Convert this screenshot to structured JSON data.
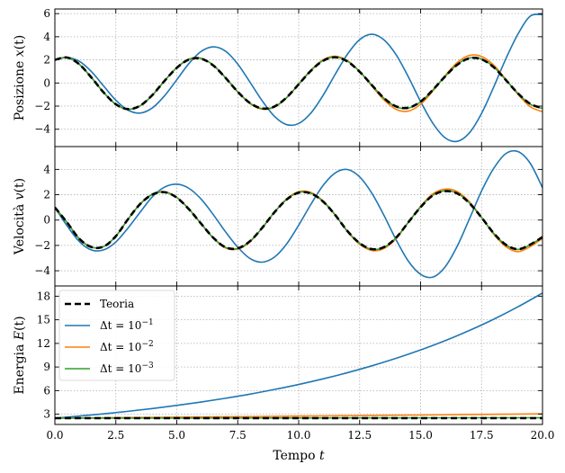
{
  "chart_data": [
    {
      "type": "line",
      "ylabel_prefix": "Posizione ",
      "ylabel_var": "x",
      "ylabel_arg": "(t)",
      "xlim": [
        0,
        20
      ],
      "ylim": [
        -5.5,
        6.4
      ],
      "xticks": [
        0,
        2.5,
        5,
        7.5,
        10,
        12.5,
        15,
        17.5,
        20
      ],
      "yticks": [
        -4,
        -2,
        0,
        2,
        4,
        6
      ],
      "yticklabels": [
        "−4",
        "−2",
        "0",
        "2",
        "4",
        "6"
      ],
      "grid": true,
      "series": [
        {
          "key": "dt1",
          "color": "#1f77b4",
          "dash": false,
          "x": [
            0,
            0.5,
            1,
            1.5,
            2,
            2.5,
            3,
            3.5,
            4,
            4.5,
            5,
            5.5,
            6,
            6.5,
            7,
            7.5,
            8,
            8.5,
            9,
            9.5,
            10,
            10.5,
            11,
            11.5,
            12,
            12.5,
            13,
            13.5,
            14,
            14.5,
            15,
            15.5,
            16,
            16.5,
            17,
            17.5,
            18,
            18.5,
            19,
            19.5,
            20
          ],
          "y": [
            2.0,
            2.2,
            1.88,
            0.98,
            -0.26,
            -1.49,
            -2.35,
            -2.6,
            -2.15,
            -1.1,
            0.28,
            1.69,
            2.73,
            3.13,
            2.75,
            1.64,
            0.08,
            -1.53,
            -2.87,
            -3.6,
            -3.5,
            -2.6,
            -1.07,
            0.76,
            2.49,
            3.75,
            4.22,
            3.73,
            2.43,
            0.52,
            -1.6,
            -3.47,
            -4.73,
            -5.05,
            -4.32,
            -2.63,
            -0.34,
            2.11,
            4.26,
            5.79,
            5.91
          ]
        },
        {
          "key": "dt2",
          "color": "#ff7f0e",
          "dash": false,
          "x": [
            0,
            0.5,
            1,
            1.5,
            2,
            2.5,
            3,
            3.5,
            4,
            4.5,
            5,
            5.5,
            6,
            6.5,
            7,
            7.5,
            8,
            8.5,
            9,
            9.5,
            10,
            10.5,
            11,
            11.5,
            12,
            12.5,
            13,
            13.5,
            14,
            14.5,
            15,
            15.5,
            16,
            16.5,
            17,
            17.5,
            18,
            18.5,
            19,
            19.5,
            20
          ],
          "y": [
            2.0,
            2.21,
            1.62,
            0.47,
            -0.82,
            -1.85,
            -2.28,
            -1.98,
            -1.06,
            0.19,
            1.34,
            2.07,
            2.14,
            1.54,
            0.45,
            -0.78,
            -1.78,
            -2.26,
            -2.09,
            -1.29,
            -0.1,
            1.11,
            2.0,
            2.31,
            1.93,
            0.99,
            -0.26,
            -1.47,
            -2.28,
            -2.43,
            -1.84,
            -0.7,
            0.62,
            1.76,
            2.38,
            2.3,
            1.54,
            0.31,
            -1.0,
            -2.06,
            -2.48
          ]
        },
        {
          "key": "dt3",
          "color": "#2ca02c",
          "dash": false,
          "x": [
            0,
            0.5,
            1,
            1.5,
            2,
            2.5,
            3,
            3.5,
            4,
            4.5,
            5,
            5.5,
            6,
            6.5,
            7,
            7.5,
            8,
            8.5,
            9,
            9.5,
            10,
            10.5,
            11,
            11.5,
            12,
            12.5,
            13,
            13.5,
            14,
            14.5,
            15,
            15.5,
            16,
            16.5,
            17,
            17.5,
            18,
            18.5,
            19,
            19.5,
            20
          ],
          "y": [
            2.0,
            2.21,
            1.62,
            0.47,
            -0.82,
            -1.84,
            -2.27,
            -1.97,
            -1.05,
            0.19,
            1.32,
            2.04,
            2.12,
            1.53,
            0.45,
            -0.76,
            -1.74,
            -2.22,
            -2.06,
            -1.28,
            -0.11,
            1.07,
            1.94,
            2.24,
            1.88,
            0.99,
            -0.19,
            -1.33,
            -2.06,
            -2.17,
            -1.63,
            -0.61,
            0.56,
            1.6,
            2.16,
            2.08,
            1.38,
            0.26,
            -0.92,
            -1.84,
            -2.2
          ]
        },
        {
          "key": "theory",
          "color": "#000000",
          "dash": true,
          "x": [
            0,
            0.5,
            1,
            1.5,
            2,
            2.5,
            3,
            3.5,
            4,
            4.5,
            5,
            5.5,
            6,
            6.5,
            7,
            7.5,
            8,
            8.5,
            9,
            9.5,
            10,
            10.5,
            11,
            11.5,
            12,
            12.5,
            13,
            13.5,
            14,
            14.5,
            15,
            15.5,
            16,
            16.5,
            17,
            17.5,
            18,
            18.5,
            19,
            19.5,
            20
          ],
          "y": [
            2.0,
            2.2,
            1.62,
            0.47,
            -0.82,
            -1.84,
            -2.26,
            -1.96,
            -1.04,
            0.19,
            1.31,
            2.03,
            2.1,
            1.51,
            0.44,
            -0.76,
            -1.73,
            -2.2,
            -2.04,
            -1.26,
            -0.11,
            1.06,
            1.92,
            2.22,
            1.86,
            0.97,
            -0.18,
            -1.31,
            -2.03,
            -2.14,
            -1.61,
            -0.6,
            0.55,
            1.57,
            2.13,
            2.05,
            1.36,
            0.25,
            -0.91,
            -1.81,
            -2.17
          ]
        }
      ]
    },
    {
      "type": "line",
      "ylabel_prefix": "Velocità ",
      "ylabel_var": "v",
      "ylabel_arg": "(t)",
      "xlim": [
        0,
        20
      ],
      "ylim": [
        -5.2,
        5.8
      ],
      "xticks": [
        0,
        2.5,
        5,
        7.5,
        10,
        12.5,
        15,
        17.5,
        20
      ],
      "yticks": [
        -4,
        -2,
        0,
        2,
        4
      ],
      "yticklabels": [
        "−4",
        "−2",
        "0",
        "2",
        "4"
      ],
      "grid": true,
      "series": [
        {
          "key": "dt1",
          "color": "#1f77b4",
          "dash": false,
          "x": [
            0,
            0.5,
            1,
            1.5,
            2,
            2.5,
            3,
            3.5,
            4,
            4.5,
            5,
            5.5,
            6,
            6.5,
            7,
            7.5,
            8,
            8.5,
            9,
            9.5,
            10,
            10.5,
            11,
            11.5,
            12,
            12.5,
            13,
            13.5,
            14,
            14.5,
            15,
            15.5,
            16,
            16.5,
            17,
            17.5,
            18,
            18.5,
            19,
            19.5,
            20
          ],
          "y": [
            1.0,
            -0.45,
            -1.69,
            -2.36,
            -2.35,
            -1.73,
            -0.63,
            0.63,
            1.84,
            2.6,
            2.83,
            2.5,
            1.65,
            0.42,
            -0.93,
            -2.14,
            -3.03,
            -3.32,
            -2.93,
            -1.9,
            -0.4,
            1.24,
            2.73,
            3.72,
            3.99,
            3.41,
            2.12,
            0.36,
            -1.57,
            -3.25,
            -4.28,
            -4.5,
            -3.71,
            -2.07,
            0.08,
            2.29,
            4.08,
            5.25,
            5.4,
            4.47,
            2.55
          ]
        },
        {
          "key": "dt2",
          "color": "#ff7f0e",
          "dash": false,
          "x": [
            0,
            0.5,
            1,
            1.5,
            2,
            2.5,
            3,
            3.5,
            4,
            4.5,
            5,
            5.5,
            6,
            6.5,
            7,
            7.5,
            8,
            8.5,
            9,
            9.5,
            10,
            10.5,
            11,
            11.5,
            12,
            12.5,
            13,
            13.5,
            14,
            14.5,
            15,
            15.5,
            16,
            16.5,
            17,
            17.5,
            18,
            18.5,
            19,
            19.5,
            20
          ],
          "y": [
            1.0,
            -0.19,
            -1.48,
            -2.14,
            -2.1,
            -1.28,
            0.07,
            1.28,
            2.04,
            2.23,
            1.8,
            0.87,
            -0.3,
            -1.43,
            -2.2,
            -2.29,
            -1.72,
            -0.63,
            0.61,
            1.66,
            2.24,
            2.18,
            1.51,
            0.4,
            -0.91,
            -1.91,
            -2.4,
            -2.24,
            -1.45,
            -0.17,
            1.08,
            2.06,
            2.44,
            2.25,
            1.44,
            0.21,
            -1.12,
            -2.1,
            -2.49,
            -2.09,
            -1.44
          ]
        },
        {
          "key": "dt3",
          "color": "#2ca02c",
          "dash": false,
          "x": [
            0,
            0.5,
            1,
            1.5,
            2,
            2.5,
            3,
            3.5,
            4,
            4.5,
            5,
            5.5,
            6,
            6.5,
            7,
            7.5,
            8,
            8.5,
            9,
            9.5,
            10,
            10.5,
            11,
            11.5,
            12,
            12.5,
            13,
            13.5,
            14,
            14.5,
            15,
            15.5,
            16,
            16.5,
            17,
            17.5,
            18,
            18.5,
            19,
            19.5,
            20
          ],
          "y": [
            1.0,
            -0.19,
            -1.47,
            -2.13,
            -2.09,
            -1.27,
            0.07,
            1.27,
            2.02,
            2.2,
            1.78,
            0.86,
            -0.29,
            -1.41,
            -2.16,
            -2.24,
            -1.68,
            -0.62,
            0.6,
            1.62,
            2.18,
            2.12,
            1.47,
            0.39,
            -0.88,
            -1.84,
            -2.31,
            -2.15,
            -1.39,
            -0.17,
            1.03,
            1.96,
            2.31,
            2.12,
            1.36,
            0.2,
            -1.05,
            -1.97,
            -2.32,
            -1.95,
            -1.35
          ]
        },
        {
          "key": "theory",
          "color": "#000000",
          "dash": true,
          "x": [
            0,
            0.5,
            1,
            1.5,
            2,
            2.5,
            3,
            3.5,
            4,
            4.5,
            5,
            5.5,
            6,
            6.5,
            7,
            7.5,
            8,
            8.5,
            9,
            9.5,
            10,
            10.5,
            11,
            11.5,
            12,
            12.5,
            13,
            13.5,
            14,
            14.5,
            15,
            15.5,
            16,
            16.5,
            17,
            17.5,
            18,
            18.5,
            19,
            19.5,
            20
          ],
          "y": [
            1.0,
            -0.19,
            -1.47,
            -2.13,
            -2.09,
            -1.27,
            0.07,
            1.27,
            2.02,
            2.2,
            1.77,
            0.85,
            -0.29,
            -1.4,
            -2.15,
            -2.23,
            -1.67,
            -0.62,
            0.6,
            1.61,
            2.16,
            2.1,
            1.46,
            0.39,
            -0.87,
            -1.82,
            -2.29,
            -2.13,
            -1.38,
            -0.17,
            1.02,
            1.94,
            2.28,
            2.1,
            1.34,
            0.2,
            -1.04,
            -1.95,
            -2.3,
            -1.93,
            -1.34
          ]
        }
      ]
    },
    {
      "type": "line",
      "ylabel_prefix": "Energia ",
      "ylabel_var": "E",
      "ylabel_arg": "(t)",
      "xlabel_prefix": "Tempo ",
      "xlabel_var": "t",
      "xlim": [
        0,
        20
      ],
      "ylim": [
        1.7,
        19.3
      ],
      "xticks": [
        0,
        2.5,
        5,
        7.5,
        10,
        12.5,
        15,
        17.5,
        20
      ],
      "xticklabels": [
        "0.0",
        "2.5",
        "5.0",
        "7.5",
        "10.0",
        "12.5",
        "15.0",
        "17.5",
        "20.0"
      ],
      "yticks": [
        3,
        6,
        9,
        12,
        15,
        18
      ],
      "yticklabels": [
        "3",
        "6",
        "9",
        "12",
        "15",
        "18"
      ],
      "grid": true,
      "legend": {
        "placement": "upper-left",
        "entries": [
          {
            "key": "theory",
            "text": "Teoria"
          },
          {
            "key": "dt1",
            "prefix": "Δt = 10",
            "sup": "−1"
          },
          {
            "key": "dt2",
            "prefix": "Δt = 10",
            "sup": "−2"
          },
          {
            "key": "dt3",
            "prefix": "Δt = 10",
            "sup": "−3"
          }
        ]
      },
      "series": [
        {
          "key": "dt1",
          "color": "#1f77b4",
          "dash": false,
          "x": [
            0,
            1,
            2,
            3,
            4,
            5,
            6,
            7,
            8,
            9,
            10,
            11,
            12,
            13,
            14,
            15,
            16,
            17,
            18,
            19,
            20
          ],
          "y": [
            2.5,
            2.76,
            3.05,
            3.37,
            3.72,
            4.12,
            4.55,
            5.03,
            5.55,
            6.14,
            6.78,
            7.49,
            8.28,
            9.15,
            10.11,
            11.17,
            12.34,
            13.64,
            15.07,
            16.66,
            18.4
          ]
        },
        {
          "key": "dt2",
          "color": "#ff7f0e",
          "dash": false,
          "x": [
            0,
            2,
            4,
            6,
            8,
            10,
            12,
            14,
            16,
            18,
            20
          ],
          "y": [
            2.5,
            2.55,
            2.6,
            2.65,
            2.7,
            2.76,
            2.81,
            2.87,
            2.93,
            2.99,
            3.05
          ]
        },
        {
          "key": "dt3",
          "color": "#2ca02c",
          "dash": false,
          "x": [
            0,
            5,
            10,
            15,
            20
          ],
          "y": [
            2.5,
            2.51,
            2.52,
            2.54,
            2.55
          ]
        },
        {
          "key": "theory",
          "color": "#000000",
          "dash": true,
          "x": [
            0,
            20
          ],
          "y": [
            2.5,
            2.5
          ]
        }
      ]
    }
  ]
}
